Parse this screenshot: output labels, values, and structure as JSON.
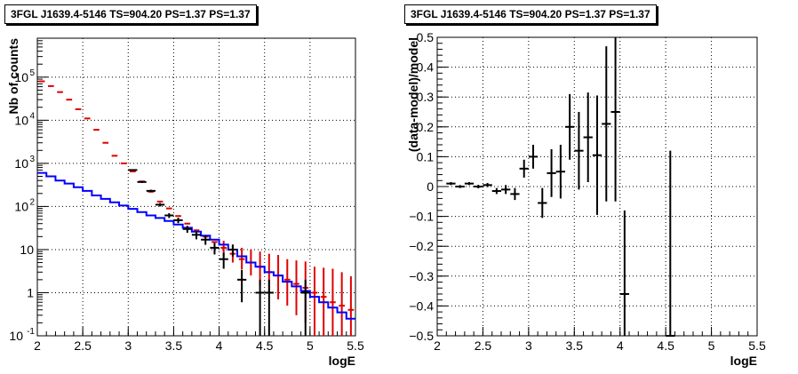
{
  "colors": {
    "data": "#000000",
    "model": "#0000ff",
    "model_error": "#e00000",
    "grid": "#000000",
    "background": "#ffffff"
  },
  "chart_data": [
    {
      "type": "line",
      "title": "3FGL J1639.4-5146 TS=904.20 PS=1.37 PS=1.37",
      "xlabel": "logE",
      "ylabel": "Nb of counts",
      "yscale": "log",
      "xlim": [
        2,
        5.5
      ],
      "ylim": [
        0.1,
        800000
      ],
      "xticks": [
        "2",
        "2.5",
        "3",
        "3.5",
        "4",
        "4.5",
        "5",
        "5.5"
      ],
      "yticks": [
        {
          "value": 0.1,
          "label": "10",
          "exp": "-1"
        },
        {
          "value": 1,
          "label": "1",
          "exp": ""
        },
        {
          "value": 10,
          "label": "10",
          "exp": ""
        },
        {
          "value": 100,
          "label": "10",
          "exp": "2"
        },
        {
          "value": 1000,
          "label": "10",
          "exp": "3"
        },
        {
          "value": 10000,
          "label": "10",
          "exp": "4"
        },
        {
          "value": 100000,
          "label": "10",
          "exp": "5"
        }
      ],
      "grid": true,
      "bin_width": 0.1,
      "series": [
        {
          "kind": "model_histogram",
          "x": [
            2.05,
            2.15,
            2.25,
            2.35,
            2.45,
            2.55,
            2.65,
            2.75,
            2.85,
            2.95,
            3.05,
            3.15,
            3.25,
            3.35,
            3.45,
            3.55,
            3.65,
            3.75,
            3.85,
            3.95,
            4.05,
            4.15,
            4.25,
            4.35,
            4.45,
            4.55,
            4.65,
            4.75,
            4.85,
            4.95,
            5.05,
            5.15,
            5.25,
            5.35,
            5.45
          ],
          "values": [
            600,
            500,
            400,
            340,
            280,
            230,
            180,
            150,
            125,
            105,
            88,
            74,
            62,
            54,
            46,
            38,
            32,
            26,
            21,
            17,
            13,
            10,
            7,
            5,
            4,
            3,
            2.5,
            1.8,
            1.4,
            1.1,
            0.8,
            0.6,
            0.45,
            0.35,
            0.25
          ]
        },
        {
          "kind": "model_total",
          "x": [
            2.05,
            2.15,
            2.25,
            2.35,
            2.45,
            2.55,
            2.65,
            2.75,
            2.85,
            2.95,
            3.05,
            3.15,
            3.25,
            3.35,
            3.45,
            3.55,
            3.65,
            3.75,
            3.85,
            3.95,
            4.05,
            4.15,
            4.25,
            4.35,
            4.45,
            4.55,
            4.65,
            4.75,
            4.85,
            4.95,
            5.05,
            5.15,
            5.25,
            5.35,
            5.45
          ],
          "values": [
            80000,
            62000,
            45000,
            30000,
            18000,
            11000,
            6000,
            3000,
            1500,
            1000,
            650,
            380,
            220,
            130,
            90,
            60,
            40,
            28,
            20,
            15,
            11,
            8,
            6,
            5,
            4,
            3,
            2.5,
            2,
            1.6,
            1.3,
            1.0,
            0.8,
            0.6,
            0.5,
            0.4
          ],
          "err_low": [
            0,
            0,
            0,
            0,
            0,
            0,
            0,
            0,
            0,
            0,
            0,
            0,
            0,
            0,
            0,
            0,
            0,
            0,
            0,
            0,
            4,
            3,
            2.5,
            2.5,
            2.5,
            2,
            1.8,
            1.5,
            1.3,
            1.1,
            0.9,
            0.75,
            0.55,
            0.45,
            0.38
          ],
          "err_high": [
            0,
            0,
            0,
            0,
            0,
            0,
            0,
            0,
            0,
            0,
            0,
            0,
            0,
            0,
            0,
            0,
            0,
            0,
            0,
            0,
            5,
            5,
            5,
            5,
            5,
            5,
            5,
            4,
            4,
            4,
            3,
            3,
            3,
            2.5,
            2
          ]
        },
        {
          "kind": "data",
          "x": [
            3.05,
            3.15,
            3.25,
            3.35,
            3.45,
            3.55,
            3.65,
            3.75,
            3.85,
            3.95,
            4.05,
            4.15,
            4.25,
            4.45,
            4.55,
            4.95
          ],
          "values": [
            700,
            370,
            230,
            110,
            62,
            48,
            30,
            22,
            17,
            11,
            6,
            10,
            2,
            1,
            1,
            1
          ],
          "err_low": [
            26,
            19,
            15,
            10,
            8,
            7,
            5.5,
            4.7,
            4.1,
            3.3,
            2.4,
            3.1,
            1.4,
            1,
            1,
            1
          ],
          "err_high": [
            26,
            19,
            15,
            10,
            8,
            7,
            5.5,
            4.7,
            4.1,
            3.3,
            2.4,
            3.1,
            1.4,
            1,
            1,
            1
          ]
        }
      ]
    },
    {
      "type": "scatter",
      "title": "3FGL J1639.4-5146 TS=904.20 PS=1.37 PS=1.37",
      "xlabel": "logE",
      "ylabel": "(data-model)/model",
      "xlim": [
        2,
        5.5
      ],
      "ylim": [
        -0.5,
        0.5
      ],
      "xticks": [
        "2",
        "2.5",
        "3",
        "3.5",
        "4",
        "4.5",
        "5",
        "5.5"
      ],
      "yticks": [
        "−0.5",
        "−0.4",
        "−0.3",
        "−0.2",
        "−0.1",
        "0",
        "0.1",
        "0.2",
        "0.3",
        "0.4",
        "0.5"
      ],
      "grid": true,
      "bin_width": 0.1,
      "x": [
        2.15,
        2.25,
        2.35,
        2.45,
        2.55,
        2.65,
        2.75,
        2.85,
        2.95,
        3.05,
        3.15,
        3.25,
        3.35,
        3.45,
        3.55,
        3.65,
        3.75,
        3.85,
        3.95,
        4.05,
        4.55
      ],
      "values": [
        0.01,
        0.0,
        0.01,
        0.0,
        0.005,
        -0.015,
        -0.01,
        -0.025,
        0.06,
        0.1,
        -0.055,
        0.045,
        0.05,
        0.2,
        0.12,
        0.165,
        0.105,
        0.21,
        0.25,
        -0.36,
        -0.5
      ],
      "err": [
        0.005,
        0.005,
        0.005,
        0.006,
        0.007,
        0.01,
        0.015,
        0.02,
        0.03,
        0.04,
        0.05,
        0.08,
        0.09,
        0.11,
        0.13,
        0.15,
        0.2,
        0.26,
        0.3,
        0.28,
        0.62
      ]
    }
  ]
}
